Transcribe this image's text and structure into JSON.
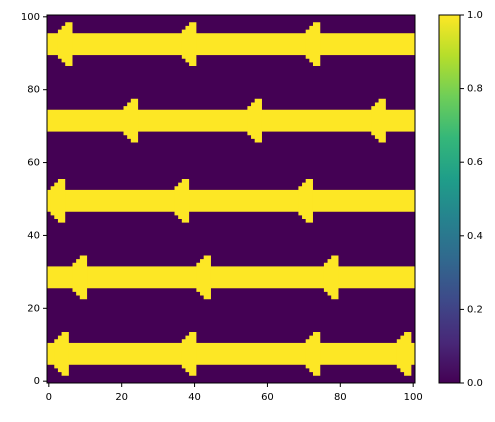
{
  "chart_data": {
    "type": "heatmap",
    "xlim": [
      -0.5,
      100.5
    ],
    "ylim": [
      -0.5,
      100.5
    ],
    "xticks": [
      0,
      20,
      40,
      60,
      80,
      100
    ],
    "yticks": [
      0,
      20,
      40,
      60,
      80,
      100
    ],
    "background_value": 0,
    "background_color": "#440154",
    "stripe_value": 1,
    "stripe_color": "#fde725",
    "stripes": [
      {
        "y0": 5,
        "y1": 10,
        "arrows": [
          5,
          40,
          74,
          99
        ]
      },
      {
        "y0": 26,
        "y1": 31,
        "arrows": [
          10,
          44,
          79
        ]
      },
      {
        "y0": 47,
        "y1": 52,
        "arrows": [
          4,
          38,
          72
        ]
      },
      {
        "y0": 69,
        "y1": 74,
        "arrows": [
          24,
          58,
          92
        ]
      },
      {
        "y0": 90,
        "y1": 95,
        "arrows": [
          6,
          40,
          74
        ]
      }
    ],
    "colorbar": {
      "lim": [
        0,
        1
      ],
      "colors": [
        "#440154",
        "#482878",
        "#3e4989",
        "#31688e",
        "#26828e",
        "#1f9e89",
        "#35b779",
        "#6ece58",
        "#b5de2b",
        "#fde725"
      ],
      "ticks": [
        {
          "value": 0,
          "label": "0.0"
        },
        {
          "value": 0.2,
          "label": "0.2"
        },
        {
          "value": 0.4,
          "label": "0.4"
        },
        {
          "value": 0.6,
          "label": "0.6"
        },
        {
          "value": 0.8,
          "label": "0.8"
        },
        {
          "value": 1,
          "label": "1.0"
        }
      ]
    }
  }
}
